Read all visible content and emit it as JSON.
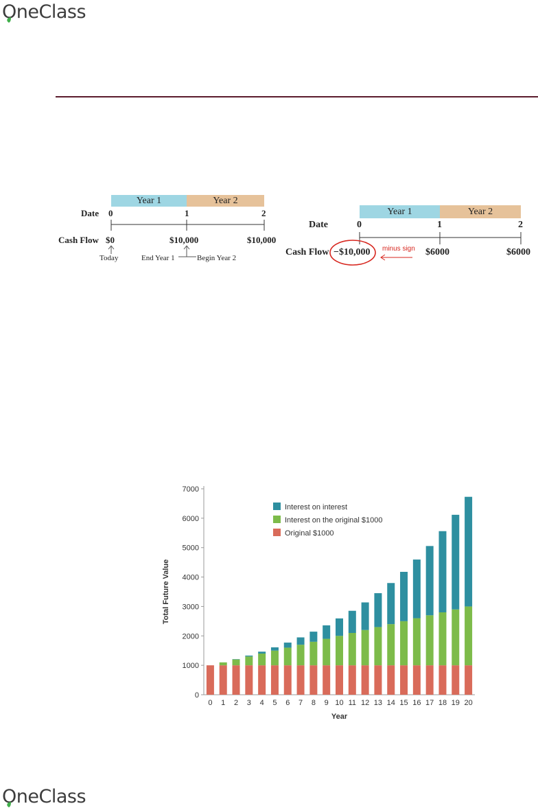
{
  "brand": {
    "logo_text": "OneClass",
    "leaf_color": "#3fae49"
  },
  "colors": {
    "rule": "#5a1a2b",
    "year1": "#9ed6e3",
    "year2": "#e6c29a",
    "annotation": "#d7261e"
  },
  "timeline_left": {
    "year1": "Year 1",
    "year2": "Year 2",
    "date_label": "Date",
    "cashflow_label": "Cash Flow",
    "dates": [
      "0",
      "1",
      "2"
    ],
    "cash_flows": [
      "$0",
      "$10,000",
      "$10,000"
    ],
    "today": "Today",
    "end_year": "End Year 1",
    "begin_year": "Begin Year 2"
  },
  "timeline_right": {
    "year1": "Year 1",
    "year2": "Year 2",
    "date_label": "Date",
    "cashflow_label": "Cash Flow",
    "dates": [
      "0",
      "1",
      "2"
    ],
    "cash_flows": [
      "−$10,000",
      "$6000",
      "$6000"
    ],
    "minus_sign_note": "minus sign"
  },
  "chart_data": {
    "type": "bar",
    "stacked": true,
    "xlabel": "Year",
    "ylabel": "Total Future Value",
    "ylim": [
      0,
      7000
    ],
    "yticks": [
      "0",
      "1000",
      "2000",
      "3000",
      "4000",
      "5000",
      "6000",
      "7000"
    ],
    "categories": [
      "0",
      "1",
      "2",
      "3",
      "4",
      "5",
      "6",
      "7",
      "8",
      "9",
      "10",
      "11",
      "12",
      "13",
      "14",
      "15",
      "16",
      "17",
      "18",
      "19",
      "20"
    ],
    "legend_position": "top-left",
    "series": [
      {
        "name": "Original $1000",
        "color": "#d96b5a",
        "values": [
          1000,
          1000,
          1000,
          1000,
          1000,
          1000,
          1000,
          1000,
          1000,
          1000,
          1000,
          1000,
          1000,
          1000,
          1000,
          1000,
          1000,
          1000,
          1000,
          1000,
          1000
        ]
      },
      {
        "name": "Interest on the original $1000",
        "color": "#7dbb4a",
        "values": [
          0,
          100,
          200,
          300,
          400,
          500,
          600,
          700,
          800,
          900,
          1000,
          1100,
          1200,
          1300,
          1400,
          1500,
          1600,
          1700,
          1800,
          1900,
          2000
        ]
      },
      {
        "name": "Interest on interest",
        "color": "#2e8fa0",
        "values": [
          0,
          0,
          10,
          31,
          64,
          111,
          172,
          249,
          344,
          458,
          594,
          753,
          938,
          1152,
          1397,
          1677,
          1995,
          2355,
          2760,
          3216,
          3727
        ]
      }
    ],
    "legend_order": [
      "Interest on interest",
      "Interest on the original $1000",
      "Original $1000"
    ]
  }
}
